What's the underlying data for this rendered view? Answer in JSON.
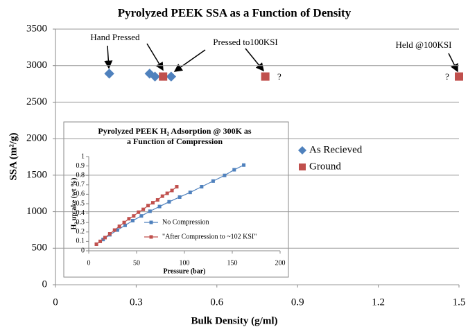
{
  "chart_data": [
    {
      "type": "scatter",
      "title": "Pyrolyzed PEEK SSA as a Function of Density",
      "x_label": "Bulk Density (g/ml)",
      "y_label": "SSA (m²/g)",
      "xlim": [
        0,
        1.5
      ],
      "xticks": [
        0,
        0.3,
        0.6,
        0.9,
        1.2,
        1.5
      ],
      "ylim": [
        0,
        3500
      ],
      "yticks": [
        0,
        500,
        1000,
        1500,
        2000,
        2500,
        3000,
        3500
      ],
      "grid": true,
      "legend": "right",
      "series": [
        {
          "name": "As Recieved",
          "color": "#4f81bd",
          "marker": "diamond",
          "x": [
            0.2,
            0.35,
            0.37,
            0.43
          ],
          "values": [
            2890,
            2890,
            2850,
            2850
          ]
        },
        {
          "name": "Ground",
          "color": "#c0504d",
          "marker": "square",
          "x": [
            0.4,
            0.78,
            1.5
          ],
          "values": [
            2850,
            2850,
            2850
          ]
        }
      ],
      "annotations": [
        "Hand Pressed",
        "Pressed to100KSI",
        "Held @100KSI",
        "?",
        "?"
      ]
    },
    {
      "type": "line",
      "title": "Pyrolyzed PEEK H₂ Adsorption @ 300K as a Function of Compression",
      "x_label": "Pressure (bar)",
      "y_label": "H₂ uptake (wt %)",
      "xlim": [
        0,
        200
      ],
      "xticks": [
        0,
        50,
        100,
        150,
        200
      ],
      "ylim": [
        0,
        1
      ],
      "yticks": [
        0,
        0.1,
        0.2,
        0.3,
        0.4,
        0.5,
        0.6,
        0.7,
        0.8,
        0.9,
        1
      ],
      "grid": false,
      "legend": "lower center",
      "series": [
        {
          "name": "No Compression",
          "color": "#4f81bd",
          "x": [
            8,
            15,
            22,
            30,
            38,
            46,
            55,
            64,
            74,
            84,
            95,
            106,
            118,
            130,
            142,
            152,
            162
          ],
          "values": [
            0.07,
            0.12,
            0.17,
            0.22,
            0.27,
            0.32,
            0.37,
            0.42,
            0.47,
            0.52,
            0.57,
            0.62,
            0.68,
            0.74,
            0.8,
            0.86,
            0.91
          ]
        },
        {
          "name": "\"After Compression to ~102 KSI\"",
          "color": "#c0504d",
          "x": [
            8,
            12,
            17,
            22,
            27,
            32,
            37,
            42,
            47,
            52,
            57,
            62,
            67,
            72,
            77,
            82,
            87,
            92
          ],
          "values": [
            0.07,
            0.1,
            0.14,
            0.18,
            0.22,
            0.26,
            0.3,
            0.34,
            0.37,
            0.41,
            0.44,
            0.48,
            0.51,
            0.54,
            0.58,
            0.61,
            0.64,
            0.68
          ]
        }
      ]
    }
  ]
}
